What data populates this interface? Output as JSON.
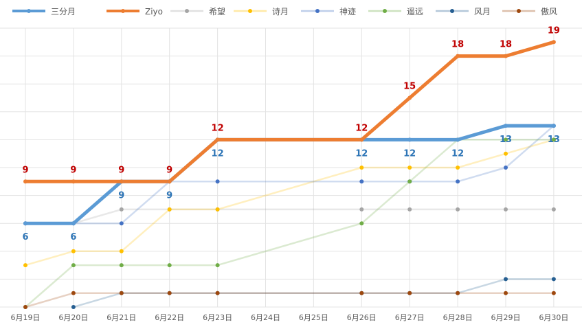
{
  "chart_data": {
    "type": "line",
    "categories": [
      "6月19日",
      "6月20日",
      "6月21日",
      "6月22日",
      "6月23日",
      "6月24日",
      "6月25日",
      "6月26日",
      "6月27日",
      "6月28日",
      "6月29日",
      "6月30日"
    ],
    "ylim": [
      0,
      20
    ],
    "grid": true,
    "legend_position": "top",
    "series": [
      {
        "name": "三分月",
        "color": "#5b9bd5",
        "emphasis": true,
        "values": [
          6,
          6,
          9,
          9,
          12,
          null,
          null,
          12,
          12,
          12,
          13,
          13
        ],
        "labels": [
          "6",
          "6",
          "9",
          "9",
          "12",
          "",
          "",
          "12",
          "12",
          "12",
          "13",
          "13"
        ],
        "label_color": "#2e75b6",
        "label_pos": "below"
      },
      {
        "name": "Ziyo",
        "color": "#ed7d31",
        "emphasis": true,
        "values": [
          9,
          9,
          9,
          9,
          12,
          null,
          null,
          12,
          15,
          18,
          18,
          19
        ],
        "labels": [
          "9",
          "9",
          "9",
          "9",
          "12",
          "",
          "",
          "12",
          "15",
          "18",
          "18",
          "19"
        ],
        "label_color": "#c00000",
        "label_pos": "above"
      },
      {
        "name": "希望",
        "color": "#a5a5a5",
        "values": [
          6,
          6,
          7,
          7,
          7,
          null,
          null,
          7,
          7,
          7,
          7,
          7
        ]
      },
      {
        "name": "诗月",
        "color": "#ffc000",
        "values": [
          3,
          4,
          4,
          7,
          7,
          null,
          null,
          10,
          10,
          10,
          11,
          12
        ]
      },
      {
        "name": "神迹",
        "color": "#4472c4",
        "values": [
          6,
          6,
          6,
          9,
          9,
          null,
          null,
          9,
          9,
          9,
          10,
          13
        ]
      },
      {
        "name": "遥远",
        "color": "#70ad47",
        "values": [
          0,
          3,
          3,
          3,
          3,
          null,
          null,
          6,
          9,
          12,
          12,
          12
        ]
      },
      {
        "name": "风月",
        "color": "#255e91",
        "values": [
          null,
          0,
          1,
          1,
          1,
          null,
          null,
          1,
          1,
          1,
          2,
          2
        ]
      },
      {
        "name": "傲风",
        "color": "#9e480e",
        "values": [
          0,
          1,
          1,
          1,
          1,
          null,
          null,
          1,
          1,
          1,
          1,
          1
        ]
      }
    ]
  }
}
